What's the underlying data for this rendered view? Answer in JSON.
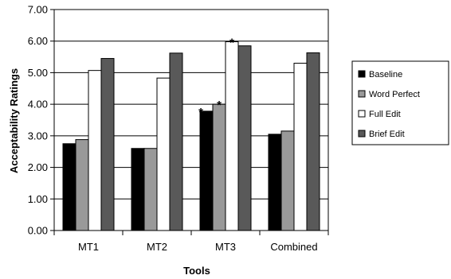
{
  "chart_data": {
    "type": "bar",
    "xlabel": "Tools",
    "ylabel": "Acceptability Ratings",
    "ylim": [
      0,
      7
    ],
    "y_tick_step": 1,
    "y_tick_labels": [
      "0.00",
      "1.00",
      "2.00",
      "3.00",
      "4.00",
      "5.00",
      "6.00",
      "7.00"
    ],
    "grid": true,
    "legend_position": "right",
    "categories": [
      "MT1",
      "MT2",
      "MT3",
      "Combined"
    ],
    "series": [
      {
        "name": "Baseline",
        "color": "#000000",
        "values": [
          2.75,
          2.6,
          3.78,
          3.05
        ]
      },
      {
        "name": "Word Perfect",
        "color": "#999999",
        "values": [
          2.88,
          2.6,
          4.0,
          3.15
        ]
      },
      {
        "name": "Full Edit",
        "color": "#ffffff",
        "values": [
          5.07,
          4.83,
          5.98,
          5.3
        ]
      },
      {
        "name": "Brief Edit",
        "color": "#595959",
        "values": [
          5.45,
          5.62,
          5.85,
          5.63
        ]
      }
    ],
    "annotations": [
      {
        "text": "*",
        "category": "MT3",
        "series": "Baseline"
      },
      {
        "text": "*",
        "category": "MT3",
        "series": "Word Perfect"
      },
      {
        "text": "*",
        "category": "MT3",
        "series": "Full Edit"
      }
    ]
  }
}
